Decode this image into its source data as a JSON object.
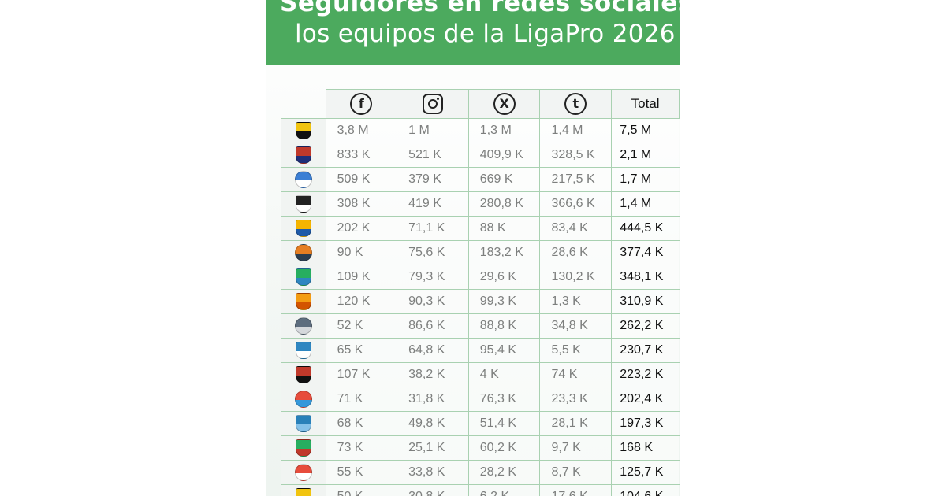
{
  "header": {
    "title_line1": "Seguidores en redes sociales de",
    "title_line2": "los equipos de la LigaPro 2026",
    "background": "#4caa5e"
  },
  "columns": [
    {
      "icon": "facebook-icon",
      "glyph": "f"
    },
    {
      "icon": "instagram-icon"
    },
    {
      "icon": "x-icon",
      "glyph": "X"
    },
    {
      "icon": "tiktok-icon",
      "glyph": "t"
    },
    {
      "label": "Total"
    }
  ],
  "rows": [
    {
      "crest_colors": [
        "#f1c40f",
        "#111111"
      ],
      "fb": "3,8 M",
      "ig": "1 M",
      "x": "1,3 M",
      "tt": "1,4 M",
      "total": "7,5 M"
    },
    {
      "crest_colors": [
        "#c0392b",
        "#1f2f7a"
      ],
      "fb": "833 K",
      "ig": "521 K",
      "x": "409,9 K",
      "tt": "328,5 K",
      "total": "2,1 M"
    },
    {
      "crest_colors": [
        "#3b7fd4",
        "#ffffff"
      ],
      "fb": "509 K",
      "ig": "379 K",
      "x": "669 K",
      "tt": "217,5 K",
      "total": "1,7 M"
    },
    {
      "crest_colors": [
        "#222222",
        "#ffffff"
      ],
      "fb": "308 K",
      "ig": "419 K",
      "x": "280,8 K",
      "tt": "366,6 K",
      "total": "1,4 M"
    },
    {
      "crest_colors": [
        "#f5b400",
        "#1e5aa8"
      ],
      "fb": "202 K",
      "ig": "71,1 K",
      "x": "88 K",
      "tt": "83,4 K",
      "total": "444,5 K"
    },
    {
      "crest_colors": [
        "#e67e22",
        "#2c3e50"
      ],
      "fb": "90 K",
      "ig": "75,6 K",
      "x": "183,2 K",
      "tt": "28,6 K",
      "total": "377,4 K"
    },
    {
      "crest_colors": [
        "#27ae60",
        "#2e86c1"
      ],
      "fb": "109 K",
      "ig": "79,3 K",
      "x": "29,6 K",
      "tt": "130,2 K",
      "total": "348,1 K"
    },
    {
      "crest_colors": [
        "#f39c12",
        "#d35400"
      ],
      "fb": "120 K",
      "ig": "90,3 K",
      "x": "99,3 K",
      "tt": "1,3 K",
      "total": "310,9 K"
    },
    {
      "crest_colors": [
        "#5d6d7e",
        "#d5d8dc"
      ],
      "fb": "52 K",
      "ig": "86,6 K",
      "x": "88,8 K",
      "tt": "34,8 K",
      "total": "262,2 K"
    },
    {
      "crest_colors": [
        "#2e86c1",
        "#ffffff"
      ],
      "fb": "65 K",
      "ig": "64,8 K",
      "x": "95,4 K",
      "tt": "5,5 K",
      "total": "230,7 K"
    },
    {
      "crest_colors": [
        "#c0392b",
        "#111111"
      ],
      "fb": "107 K",
      "ig": "38,2 K",
      "x": "4 K",
      "tt": "74 K",
      "total": "223,2 K"
    },
    {
      "crest_colors": [
        "#e74c3c",
        "#3498db"
      ],
      "fb": "71 K",
      "ig": "31,8 K",
      "x": "76,3 K",
      "tt": "23,3 K",
      "total": "202,4 K"
    },
    {
      "crest_colors": [
        "#2980b9",
        "#85c1e9"
      ],
      "fb": "68 K",
      "ig": "49,8 K",
      "x": "51,4 K",
      "tt": "28,1 K",
      "total": "197,3 K"
    },
    {
      "crest_colors": [
        "#27ae60",
        "#c0392b"
      ],
      "fb": "73 K",
      "ig": "25,1 K",
      "x": "60,2 K",
      "tt": "9,7 K",
      "total": "168 K"
    },
    {
      "crest_colors": [
        "#e74c3c",
        "#ffffff"
      ],
      "fb": "55 K",
      "ig": "33,8 K",
      "x": "28,2 K",
      "tt": "8,7 K",
      "total": "125,7 K"
    },
    {
      "crest_colors": [
        "#f1c40f",
        "#111111"
      ],
      "fb": "50 K",
      "ig": "30,8 K",
      "x": "6,2 K",
      "tt": "17,6 K",
      "total": "104,6 K"
    }
  ]
}
